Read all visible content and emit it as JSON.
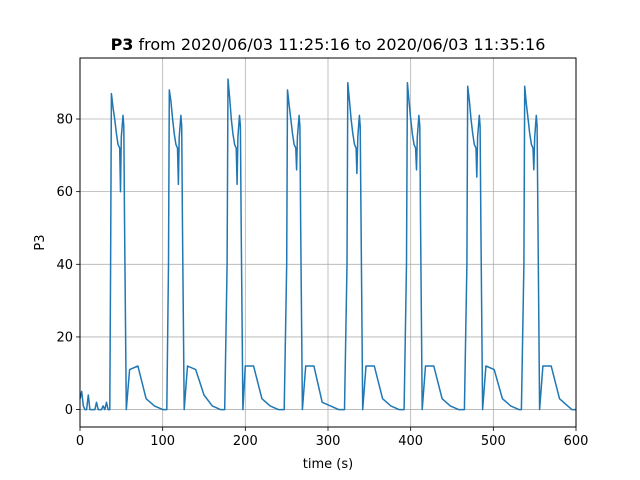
{
  "chart_data": {
    "type": "line",
    "title": {
      "series_name": "P3",
      "suffix": " from 2020/06/03 11:25:16 to 2020/06/03 11:35:16"
    },
    "xlabel": "time (s)",
    "ylabel": "P3",
    "xlim": [
      0,
      600
    ],
    "ylim": [
      -4.8,
      96.8
    ],
    "x_ticks": [
      0,
      100,
      200,
      300,
      400,
      500,
      600
    ],
    "y_ticks": [
      0,
      20,
      40,
      60,
      80
    ],
    "grid": true,
    "line_color": "#1f77b4",
    "cycle_starts": [
      0,
      37,
      107,
      178,
      250,
      323,
      395,
      468,
      537
    ],
    "series": [
      {
        "x": [
          0,
          2,
          4,
          6,
          8,
          10,
          12,
          14,
          16,
          18,
          20,
          22,
          24,
          26,
          28,
          30,
          32,
          34,
          36,
          37,
          38,
          40,
          42,
          44,
          46,
          48,
          49,
          50,
          52,
          53,
          54,
          56,
          60,
          70,
          80,
          90,
          100,
          105,
          107,
          108,
          110,
          112,
          114,
          116,
          118,
          119,
          120,
          122,
          123,
          124,
          126,
          130,
          140,
          150,
          160,
          170,
          175,
          178,
          179,
          181,
          183,
          185,
          187,
          189,
          190,
          191,
          193,
          194,
          195,
          197,
          200,
          210,
          220,
          230,
          240,
          247,
          250,
          251,
          253,
          255,
          257,
          259,
          261,
          262,
          263,
          265,
          266,
          267,
          269,
          273,
          283,
          293,
          303,
          313,
          320,
          323,
          324,
          326,
          328,
          330,
          332,
          334,
          335,
          336,
          338,
          339,
          340,
          342,
          346,
          356,
          366,
          376,
          386,
          392,
          395,
          396,
          398,
          400,
          402,
          404,
          406,
          407,
          408,
          410,
          411,
          412,
          414,
          418,
          428,
          438,
          448,
          458,
          465,
          468,
          469,
          471,
          473,
          475,
          477,
          479,
          480,
          481,
          483,
          484,
          485,
          487,
          491,
          501,
          511,
          521,
          531,
          534,
          537,
          538,
          540,
          542,
          544,
          546,
          548,
          549,
          550,
          552,
          553,
          554,
          556,
          560,
          570,
          580,
          590,
          595,
          600
        ],
        "y": [
          3,
          5,
          1,
          0,
          0,
          4,
          0,
          0,
          0,
          0,
          2,
          0,
          0,
          0,
          1,
          0,
          2,
          0,
          0,
          40,
          87,
          83,
          80,
          76,
          73,
          72,
          60,
          75,
          81,
          78,
          50,
          0,
          11,
          12,
          3,
          1,
          0,
          0,
          40,
          88,
          85,
          80,
          76,
          73,
          72,
          62,
          75,
          81,
          78,
          50,
          0,
          12,
          11,
          4,
          1,
          0,
          0,
          40,
          91,
          86,
          80,
          76,
          73,
          72,
          62,
          75,
          81,
          78,
          50,
          0,
          12,
          12,
          3,
          1,
          0,
          0,
          40,
          88,
          84,
          80,
          76,
          73,
          72,
          66,
          75,
          81,
          78,
          50,
          0,
          12,
          12,
          2,
          1,
          0,
          0,
          40,
          90,
          85,
          80,
          76,
          73,
          72,
          65,
          75,
          81,
          78,
          50,
          0,
          12,
          12,
          3,
          1,
          0,
          0,
          40,
          90,
          85,
          80,
          76,
          73,
          72,
          66,
          75,
          81,
          78,
          50,
          0,
          12,
          12,
          3,
          1,
          0,
          0,
          40,
          89,
          85,
          80,
          76,
          73,
          72,
          64,
          75,
          81,
          78,
          50,
          0,
          12,
          11,
          3,
          1,
          0,
          0,
          40,
          89,
          84,
          80,
          76,
          73,
          72,
          66,
          75,
          81,
          78,
          50,
          0,
          12,
          12,
          3,
          1,
          0,
          0
        ]
      }
    ]
  }
}
